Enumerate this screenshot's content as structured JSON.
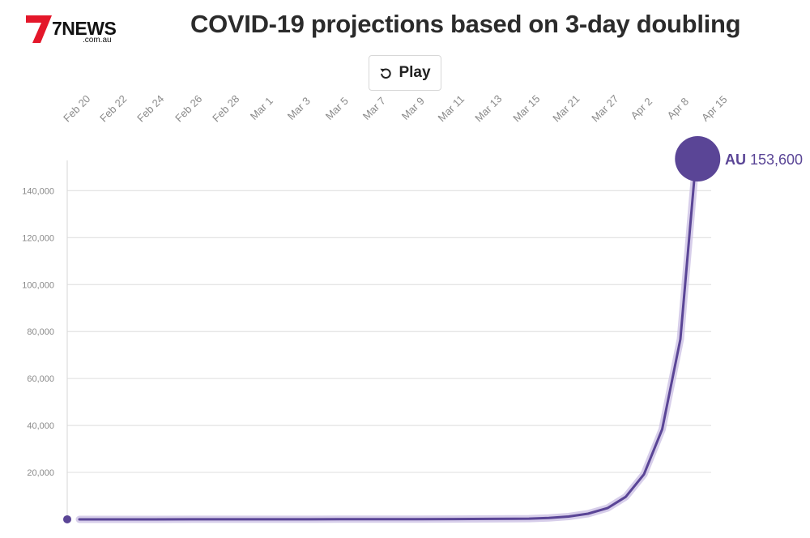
{
  "header": {
    "logo_text": "7NEWS",
    "logo_subtext": ".com.au",
    "title": "COVID-19 projections based on 3-day doubling"
  },
  "controls": {
    "play_label": "Play",
    "play_icon": "replay-icon"
  },
  "colors": {
    "series": "#5a4596",
    "series_halo": "#c9bde3",
    "grid": "#e3e3e3",
    "axis_text": "#8a8a8a",
    "brand_red": "#e4172a"
  },
  "chart_data": {
    "type": "line",
    "title": "COVID-19 projections based on 3-day doubling",
    "xlabel": "",
    "ylabel": "",
    "x_ticks": [
      "Feb 20",
      "Feb 22",
      "Feb 24",
      "Feb 26",
      "Feb 28",
      "Mar 1",
      "Mar 3",
      "Mar 5",
      "Mar 7",
      "Mar 9",
      "Mar 11",
      "Mar 13",
      "Mar 15",
      "Mar 21",
      "Mar 27",
      "Apr 2",
      "Apr 8",
      "Apr 15"
    ],
    "y_ticks": [
      20000,
      40000,
      60000,
      80000,
      100000,
      120000,
      140000
    ],
    "y_tick_labels": [
      "20,000",
      "40,000",
      "60,000",
      "80,000",
      "100,000",
      "120,000",
      "140,000"
    ],
    "ylim": [
      0,
      153600
    ],
    "grid": true,
    "series": [
      {
        "name": "AU",
        "end_label": "AU",
        "end_value_label": "153,600",
        "points": [
          {
            "x": "Feb 20",
            "y": 15
          },
          {
            "x": "Feb 22",
            "y": 15
          },
          {
            "x": "Feb 24",
            "y": 15
          },
          {
            "x": "Feb 26",
            "y": 22
          },
          {
            "x": "Feb 28",
            "y": 25
          },
          {
            "x": "Mar 1",
            "y": 27
          },
          {
            "x": "Mar 3",
            "y": 40
          },
          {
            "x": "Mar 5",
            "y": 57
          },
          {
            "x": "Mar 7",
            "y": 74
          },
          {
            "x": "Mar 9",
            "y": 92
          },
          {
            "x": "Mar 11",
            "y": 128
          },
          {
            "x": "Mar 13",
            "y": 197
          },
          {
            "x": "Mar 15",
            "y": 300
          },
          {
            "x": "Mar 18",
            "y": 600
          },
          {
            "x": "Mar 21",
            "y": 1200
          },
          {
            "x": "Mar 24",
            "y": 2400
          },
          {
            "x": "Mar 27",
            "y": 4800
          },
          {
            "x": "Mar 30",
            "y": 9600
          },
          {
            "x": "Apr 2",
            "y": 19200
          },
          {
            "x": "Apr 5",
            "y": 38400
          },
          {
            "x": "Apr 8",
            "y": 76800
          },
          {
            "x": "Apr 11",
            "y": 153600
          }
        ]
      }
    ]
  }
}
